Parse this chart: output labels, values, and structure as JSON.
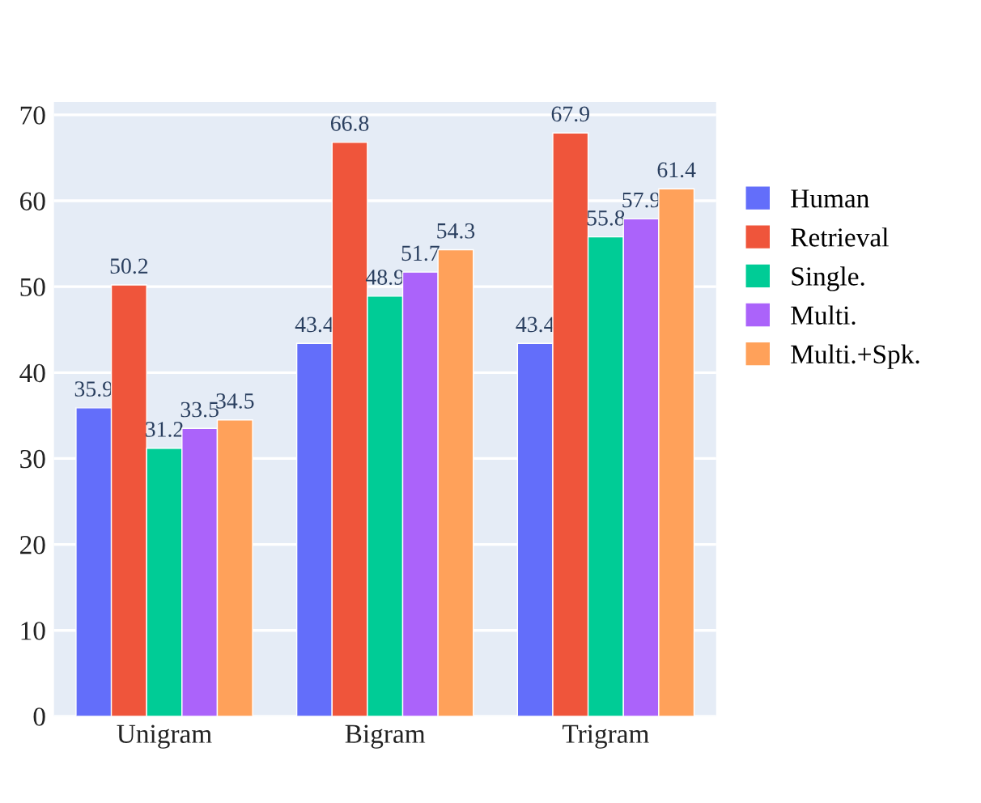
{
  "chart_data": {
    "type": "bar",
    "categories": [
      "Unigram",
      "Bigram",
      "Trigram"
    ],
    "series": [
      {
        "name": "Human",
        "color": "#636efa",
        "values": [
          35.9,
          43.4,
          43.4
        ]
      },
      {
        "name": "Retrieval",
        "color": "#ef553b",
        "values": [
          50.2,
          66.8,
          67.9
        ]
      },
      {
        "name": "Single.",
        "color": "#00cc96",
        "values": [
          31.2,
          48.9,
          55.8
        ]
      },
      {
        "name": "Multi.",
        "color": "#ab63fa",
        "values": [
          33.5,
          51.7,
          57.9
        ]
      },
      {
        "name": "Multi.+Spk.",
        "color": "#ffa15a",
        "values": [
          34.5,
          54.3,
          61.4
        ]
      }
    ],
    "ylim": [
      0,
      71.5
    ],
    "yticks": [
      0,
      10,
      20,
      30,
      40,
      50,
      60,
      70
    ],
    "grid": "y",
    "legend": "top right",
    "data_labels": true
  }
}
